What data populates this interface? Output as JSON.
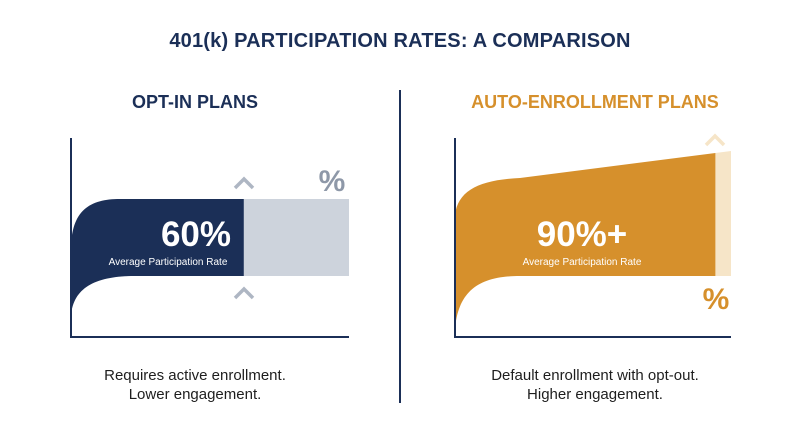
{
  "title": "401(k) PARTICIPATION RATES: A COMPARISON",
  "colors": {
    "navy": "#1b2f57",
    "gold": "#d6902c",
    "gray_fill": "#cdd3dc",
    "gray_marks": "#aeb6c3",
    "light_gold": "#f6e5c8"
  },
  "chart_data": [
    {
      "type": "area",
      "title": "OPT-IN PLANS",
      "value_label": "60%",
      "value_caption": "Average Participation Rate",
      "value": 60,
      "remainder_label": "%",
      "caption_lines": [
        "Requires active enrollment.",
        "Lower engagement."
      ]
    },
    {
      "type": "area",
      "title": "AUTO-ENROLLMENT PLANS",
      "value_label": "90%+",
      "value_caption": "Average Participation Rate",
      "value": 90,
      "remainder_label": "%",
      "caption_lines": [
        "Default enrollment with opt-out.",
        "Higher engagement."
      ]
    }
  ]
}
